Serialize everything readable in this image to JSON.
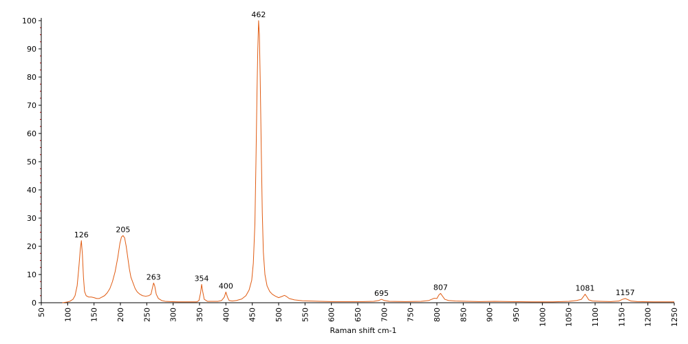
{
  "chart_data": {
    "type": "line",
    "title": "",
    "xlabel": "Raman shift cm-1",
    "ylabel": "",
    "xlim": [
      50,
      1250
    ],
    "ylim": [
      0,
      100
    ],
    "x_ticks": [
      50,
      100,
      150,
      200,
      250,
      300,
      350,
      400,
      450,
      500,
      550,
      600,
      650,
      700,
      750,
      800,
      850,
      900,
      950,
      1000,
      1050,
      1100,
      1150,
      1200,
      1250
    ],
    "y_ticks": [
      0,
      10,
      20,
      30,
      40,
      50,
      60,
      70,
      80,
      90,
      100
    ],
    "grid": false,
    "legend": "none",
    "line_color": "#e05a10",
    "annotations": [
      {
        "x": 126,
        "y": 22,
        "text": "126"
      },
      {
        "x": 205,
        "y": 23.8,
        "text": "205"
      },
      {
        "x": 263,
        "y": 7,
        "text": "263"
      },
      {
        "x": 354,
        "y": 6.5,
        "text": "354"
      },
      {
        "x": 400,
        "y": 3.8,
        "text": "400"
      },
      {
        "x": 462,
        "y": 100,
        "text": "462"
      },
      {
        "x": 695,
        "y": 1.2,
        "text": "695"
      },
      {
        "x": 807,
        "y": 3.3,
        "text": "807"
      },
      {
        "x": 1081,
        "y": 3.0,
        "text": "1081"
      },
      {
        "x": 1157,
        "y": 1.5,
        "text": "1157"
      }
    ],
    "series": [
      {
        "values": [
          [
            90,
            0
          ],
          [
            98,
            0.2
          ],
          [
            104,
            0.5
          ],
          [
            110,
            1.2
          ],
          [
            114,
            2.5
          ],
          [
            118,
            6
          ],
          [
            121,
            12
          ],
          [
            124,
            19
          ],
          [
            126,
            22
          ],
          [
            128,
            17
          ],
          [
            130,
            9
          ],
          [
            132,
            4
          ],
          [
            135,
            2.5
          ],
          [
            140,
            2
          ],
          [
            145,
            2
          ],
          [
            150,
            1.8
          ],
          [
            155,
            1.5
          ],
          [
            160,
            1.5
          ],
          [
            165,
            2
          ],
          [
            170,
            2.5
          ],
          [
            175,
            3.5
          ],
          [
            180,
            5
          ],
          [
            185,
            7.5
          ],
          [
            190,
            11
          ],
          [
            195,
            16
          ],
          [
            199,
            21
          ],
          [
            202,
            23.3
          ],
          [
            205,
            23.8
          ],
          [
            208,
            23
          ],
          [
            211,
            20
          ],
          [
            214,
            16
          ],
          [
            217,
            12
          ],
          [
            220,
            9
          ],
          [
            224,
            7
          ],
          [
            228,
            5
          ],
          [
            232,
            3.8
          ],
          [
            237,
            3
          ],
          [
            242,
            2.5
          ],
          [
            248,
            2.3
          ],
          [
            254,
            2.5
          ],
          [
            258,
            3
          ],
          [
            261,
            5.5
          ],
          [
            263,
            7
          ],
          [
            265,
            6
          ],
          [
            268,
            3
          ],
          [
            272,
            1.5
          ],
          [
            278,
            0.8
          ],
          [
            285,
            0.5
          ],
          [
            295,
            0.4
          ],
          [
            310,
            0.3
          ],
          [
            330,
            0.3
          ],
          [
            345,
            0.3
          ],
          [
            349,
            0.8
          ],
          [
            352,
            3.5
          ],
          [
            354,
            6.5
          ],
          [
            356,
            4
          ],
          [
            359,
            1.2
          ],
          [
            365,
            0.5
          ],
          [
            375,
            0.5
          ],
          [
            385,
            0.5
          ],
          [
            392,
            0.8
          ],
          [
            397,
            2
          ],
          [
            400,
            3.8
          ],
          [
            403,
            2
          ],
          [
            406,
            0.8
          ],
          [
            412,
            0.6
          ],
          [
            420,
            0.8
          ],
          [
            430,
            1.3
          ],
          [
            438,
            2.5
          ],
          [
            444,
            4.5
          ],
          [
            449,
            8
          ],
          [
            452,
            14
          ],
          [
            455,
            28
          ],
          [
            457,
            50
          ],
          [
            459,
            75
          ],
          [
            460.5,
            90
          ],
          [
            462,
            100
          ],
          [
            463.5,
            95
          ],
          [
            465,
            80
          ],
          [
            467,
            55
          ],
          [
            469,
            32
          ],
          [
            471,
            18
          ],
          [
            474,
            10
          ],
          [
            478,
            6
          ],
          [
            483,
            4
          ],
          [
            488,
            3
          ],
          [
            494,
            2.3
          ],
          [
            500,
            1.8
          ],
          [
            506,
            2.2
          ],
          [
            511,
            2.6
          ],
          [
            515,
            2.2
          ],
          [
            520,
            1.5
          ],
          [
            530,
            1
          ],
          [
            545,
            0.7
          ],
          [
            560,
            0.6
          ],
          [
            580,
            0.5
          ],
          [
            600,
            0.4
          ],
          [
            630,
            0.4
          ],
          [
            660,
            0.4
          ],
          [
            680,
            0.5
          ],
          [
            690,
            0.8
          ],
          [
            695,
            1.2
          ],
          [
            700,
            0.8
          ],
          [
            710,
            0.5
          ],
          [
            740,
            0.4
          ],
          [
            770,
            0.5
          ],
          [
            785,
            0.8
          ],
          [
            795,
            1.6
          ],
          [
            800,
            1.5
          ],
          [
            804,
            2.8
          ],
          [
            807,
            3.3
          ],
          [
            810,
            2.5
          ],
          [
            815,
            1.2
          ],
          [
            822,
            0.8
          ],
          [
            835,
            0.6
          ],
          [
            860,
            0.5
          ],
          [
            880,
            0.4
          ],
          [
            910,
            0.5
          ],
          [
            940,
            0.4
          ],
          [
            980,
            0.3
          ],
          [
            1020,
            0.3
          ],
          [
            1050,
            0.5
          ],
          [
            1065,
            0.8
          ],
          [
            1074,
            1.2
          ],
          [
            1078,
            2.2
          ],
          [
            1081,
            3
          ],
          [
            1084,
            2.2
          ],
          [
            1088,
            1
          ],
          [
            1095,
            0.6
          ],
          [
            1110,
            0.5
          ],
          [
            1130,
            0.4
          ],
          [
            1145,
            0.6
          ],
          [
            1152,
            1.2
          ],
          [
            1157,
            1.5
          ],
          [
            1162,
            1.1
          ],
          [
            1168,
            0.6
          ],
          [
            1180,
            0.4
          ],
          [
            1210,
            0.3
          ],
          [
            1250,
            0.3
          ]
        ]
      }
    ]
  }
}
